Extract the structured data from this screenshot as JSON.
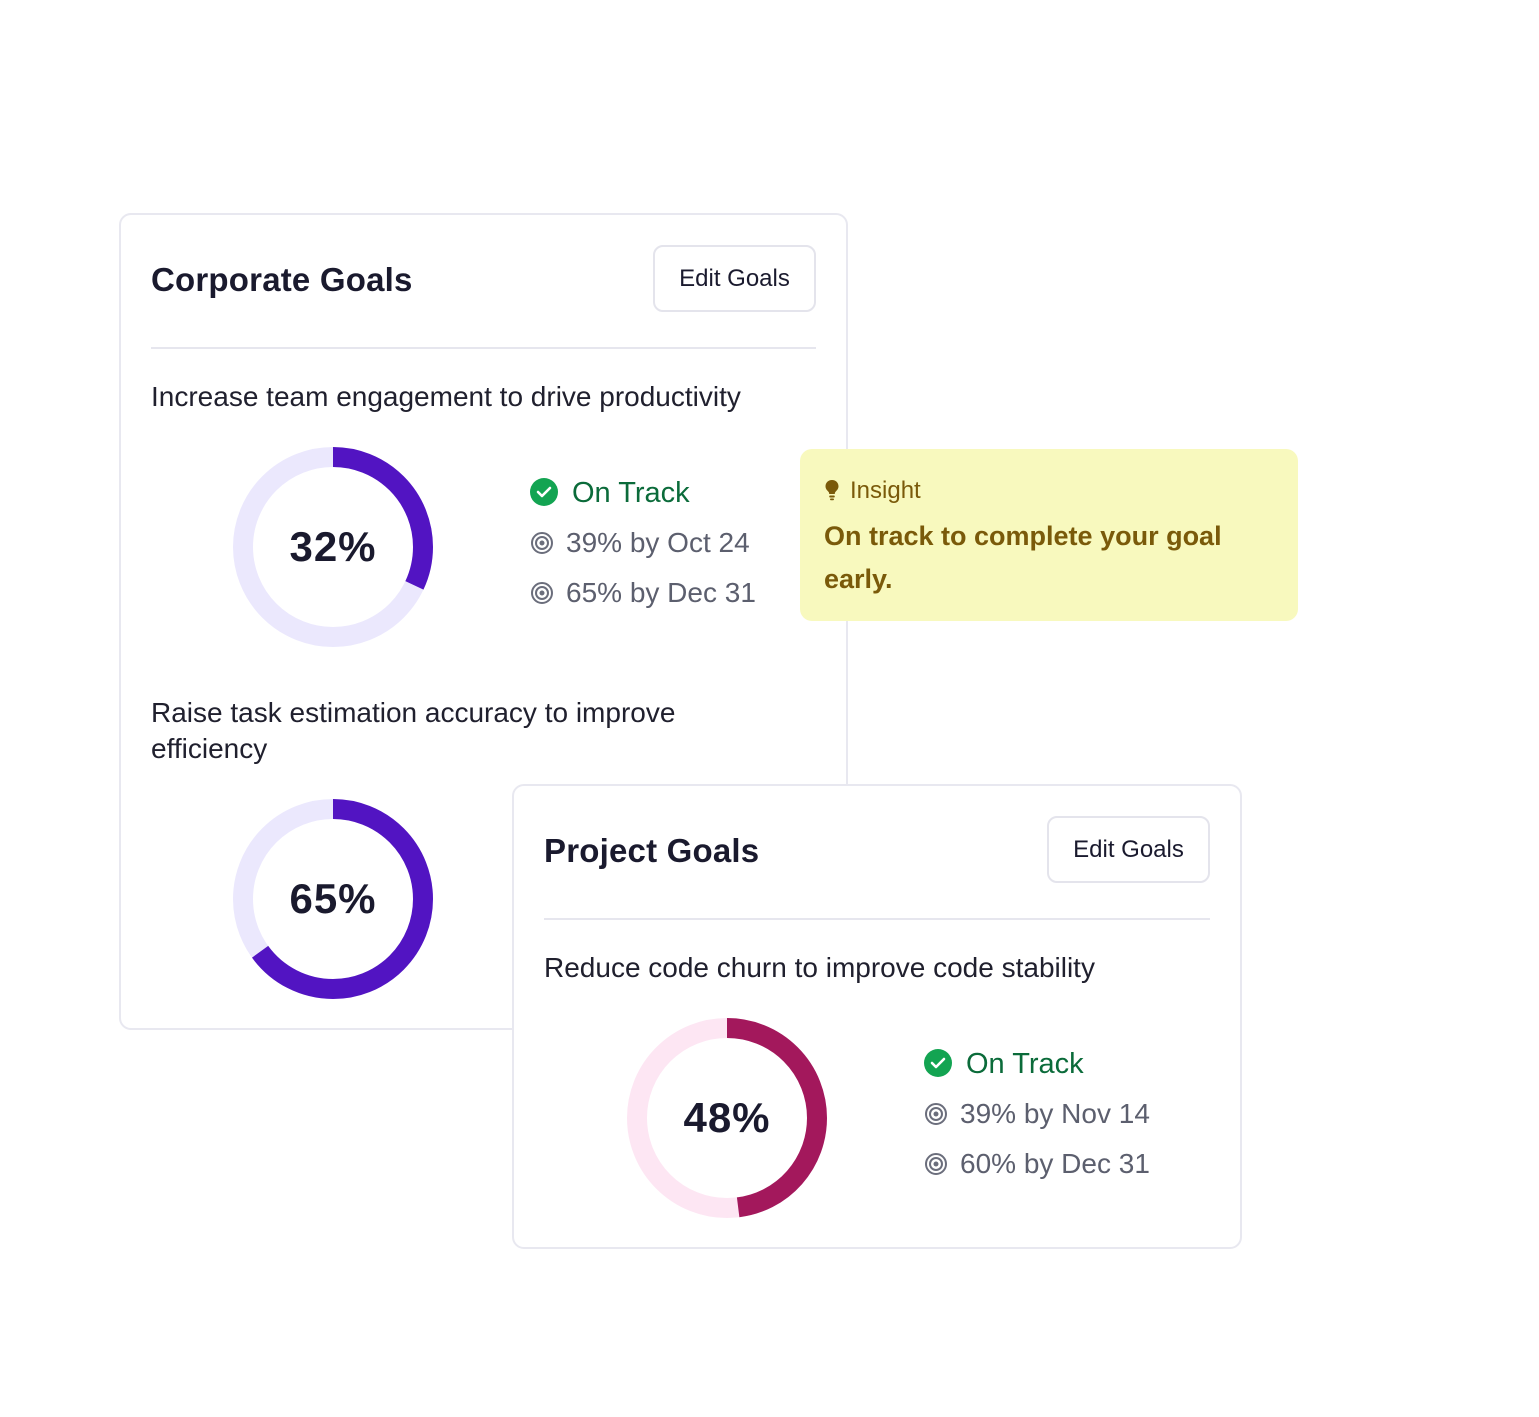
{
  "colors": {
    "corporate_ring": "#5214c2",
    "corporate_track": "#ebe8fd",
    "project_ring": "#a3185c",
    "project_track": "#fde6f3",
    "on_track_green": "#13a452",
    "insight_bg": "#f8f9be"
  },
  "corporate": {
    "title": "Corporate Goals",
    "edit_label": "Edit Goals",
    "goals": [
      {
        "title": "Increase team engagement to drive productivity",
        "progress": 32,
        "progress_label": "32%",
        "status": "On Track",
        "milestones": [
          "39% by Oct 24",
          "65% by Dec 31"
        ]
      },
      {
        "title": "Raise task estimation accuracy to improve efficiency",
        "progress": 65,
        "progress_label": "65%"
      }
    ]
  },
  "project": {
    "title": "Project Goals",
    "edit_label": "Edit Goals",
    "goals": [
      {
        "title": "Reduce code churn to improve code stability",
        "progress": 48,
        "progress_label": "48%",
        "status": "On Track",
        "milestones": [
          "39% by Nov 14",
          "60% by Dec 31"
        ]
      }
    ]
  },
  "insight": {
    "icon": "lightbulb-icon",
    "label": "Insight",
    "text": "On track to complete your goal early."
  }
}
